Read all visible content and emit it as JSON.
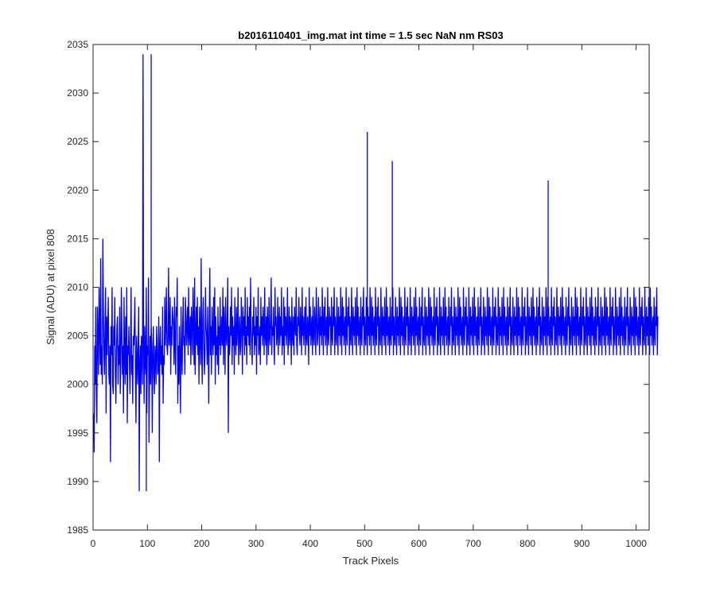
{
  "chart_data": {
    "type": "line",
    "title": "b2016110401_img.mat int time = 1.5 sec  NaN nm RS03",
    "xlabel": "Track Pixels",
    "ylabel": "Signal (ADU) at pixel 808",
    "xlim": [
      0,
      1024
    ],
    "ylim": [
      1985,
      2035
    ],
    "xticks": [
      "0",
      "100",
      "200",
      "300",
      "400",
      "500",
      "600",
      "700",
      "800",
      "900",
      "1000"
    ],
    "yticks": [
      "1985",
      "1990",
      "1995",
      "2000",
      "2005",
      "2010",
      "2015",
      "2020",
      "2025",
      "2030",
      "2035"
    ],
    "grid": false,
    "series": [
      {
        "color": "#0000ff",
        "x_start": 1,
        "x_step": 1,
        "values": [
          1997,
          1993,
          2004,
          2000,
          2008,
          1999,
          1996,
          2008,
          2005,
          2001,
          2010,
          2006,
          2002,
          2013,
          2001,
          2004,
          2000,
          2015,
          2008,
          2003,
          2001,
          2006,
          2010,
          1997,
          2007,
          2003,
          2006,
          2009,
          2001,
          2000,
          2004,
          1992,
          2006,
          2003,
          2010,
          2000,
          1999,
          2006,
          2004,
          2009,
          2001,
          1998,
          2003,
          2006,
          2007,
          2000,
          2004,
          2002,
          2008,
          1999,
          2002,
          2010,
          2006,
          2001,
          2004,
          1997,
          2009,
          2003,
          2000,
          2007,
          2001,
          2010,
          1996,
          2004,
          2003,
          2006,
          2002,
          1999,
          2004,
          2010,
          2001,
          2003,
          1998,
          2005,
          2004,
          2006,
          2009,
          2001,
          1996,
          2005,
          2003,
          2000,
          2004,
          2008,
          1989,
          2002,
          2004,
          1999,
          2005,
          2003,
          2000,
          2034,
          2004,
          1998,
          2006,
          2002,
          2001,
          2010,
          1997,
          2004,
          2003,
          2011,
          1994,
          2001,
          2005,
          2000,
          2006,
          2004,
          1995,
          2003,
          2006,
          2001,
          1999,
          2004,
          2003,
          2000,
          2006,
          2004,
          2001,
          2002,
          2007,
          1992,
          2004,
          2006,
          2002,
          2004,
          2001,
          2008,
          1998,
          2003,
          2002,
          2009,
          2004,
          2006,
          2010,
          2004,
          2003,
          2005,
          2012,
          2004,
          2005,
          2009,
          2001,
          2006,
          2004,
          2008,
          2007,
          2006,
          2002,
          2009,
          2004,
          2001,
          2008,
          2007,
          2011,
          1998,
          2004,
          2000,
          2006,
          2002,
          1997,
          2008,
          2003,
          2001,
          2006,
          2009,
          2004,
          2005,
          2001,
          2009,
          2007,
          2004,
          2006,
          2008,
          2003,
          2010,
          2005,
          2004,
          2007,
          2002,
          2008,
          2006,
          2003,
          2010,
          2007,
          2002,
          2011,
          2001,
          2005,
          2008,
          2004,
          2009,
          2003,
          2006,
          2000,
          2008,
          2005,
          2002,
          2013,
          2004,
          2000,
          2007,
          2009,
          2004,
          2001,
          2003,
          2010,
          2006,
          2005,
          2002,
          2008,
          2004,
          1998,
          2007,
          2012,
          2003,
          2006,
          2001,
          2008,
          2005,
          2003,
          2009,
          2004,
          2010,
          2000,
          2007,
          2003,
          2005,
          2002,
          2008,
          2001,
          2006,
          2004,
          2009,
          2003,
          2005,
          2007,
          2004,
          2010,
          2002,
          2008,
          2006,
          2001,
          2009,
          2005,
          2004,
          2007,
          2011,
          1995,
          2006,
          2003,
          2004,
          2008,
          2005,
          2010,
          2002,
          2007,
          2004,
          2006,
          2001,
          2009,
          2005,
          2003,
          2008,
          2004,
          2006,
          2010,
          2002,
          2005,
          2007,
          2003,
          2004,
          2009,
          2006,
          2001,
          2008,
          2005,
          2007,
          2003,
          2010,
          2004,
          2006,
          2002,
          2009,
          2005,
          2007,
          2004,
          2008,
          2003,
          2011,
          2006,
          2004,
          2002,
          2007,
          2005,
          2009,
          2003,
          2006,
          2004,
          2008,
          2001,
          2007,
          2005,
          2010,
          2003,
          2004,
          2006,
          2002,
          2009,
          2005,
          2007,
          2004,
          2008,
          2006,
          2003,
          2010,
          2005,
          2004,
          2007,
          2002,
          2008,
          2006,
          2003,
          2009,
          2005,
          2004,
          2007,
          2011,
          2003,
          2006,
          2005,
          2008,
          2004,
          2002,
          2010,
          2006,
          2007,
          2004,
          2005,
          2009,
          2003,
          2006,
          2008,
          2004,
          2007,
          2005,
          2010,
          2003,
          2006,
          2004,
          2009,
          2002,
          2008,
          2005,
          2007,
          2004,
          2006,
          2010,
          2003,
          2005,
          2008,
          2004,
          2007,
          2006,
          2002,
          2009,
          2005,
          2004,
          2007,
          2003,
          2008,
          2006,
          2005,
          2010,
          2004,
          2003,
          2007,
          2006,
          2009,
          2005,
          2004,
          2008,
          2006,
          2003,
          2010,
          2005,
          2007,
          2004,
          2006,
          2008,
          2003,
          2009,
          2005,
          2004,
          2007,
          2006,
          2002,
          2010,
          2005,
          2008,
          2004,
          2006,
          2007,
          2003,
          2009,
          2005,
          2004,
          2008,
          2006,
          2003,
          2010,
          2007,
          2004,
          2005,
          2009,
          2006,
          2003,
          2008,
          2005,
          2007,
          2004,
          2010,
          2006,
          2003,
          2008,
          2005,
          2009,
          2004,
          2006,
          2007,
          2003,
          2010,
          2005,
          2004,
          2008,
          2006,
          2007,
          2003,
          2009,
          2005,
          2004,
          2008,
          2006,
          2010,
          2003,
          2007,
          2005,
          2004,
          2009,
          2006,
          2003,
          2008,
          2005,
          2007,
          2004,
          2010,
          2006,
          2003,
          2009,
          2005,
          2008,
          2004,
          2006,
          2007,
          2003,
          2010,
          2005,
          2004,
          2008,
          2006,
          2009,
          2003,
          2007,
          2005,
          2004,
          2010,
          2006,
          2003,
          2008,
          2005,
          2007,
          2004,
          2009,
          2006,
          2003,
          2010,
          2005,
          2008,
          2004,
          2006,
          2007,
          2003,
          2009,
          2005,
          2004,
          2008,
          2006,
          2010,
          2003,
          2007,
          2005,
          2004,
          2009,
          2006,
          2003,
          2008,
          2005,
          2007,
          2004,
          2010,
          2006,
          2003,
          2009,
          2005,
          2008,
          2004,
          2006,
          2007,
          2003,
          2010,
          2005,
          2004,
          2008,
          2006,
          2009,
          2003,
          2007,
          2005,
          2004,
          2010,
          2006,
          2003,
          2008,
          2005,
          2007,
          2004,
          2009,
          2006,
          2003,
          2010,
          2005,
          2008,
          2004,
          2006,
          2007,
          2003,
          2009,
          2005,
          2004,
          2008,
          2006,
          2010,
          2003,
          2007,
          2005,
          2004,
          2009,
          2006,
          2003,
          2008,
          2005,
          2007,
          2004,
          2010,
          2006,
          2003,
          2009,
          2005,
          2008,
          2004,
          2006,
          2007,
          2003,
          2010,
          2005,
          2004,
          2008,
          2006,
          2009,
          2003,
          2007,
          2005,
          2004,
          2010,
          2006,
          2003,
          2008,
          2005,
          2007,
          2004,
          2009,
          2006,
          2003,
          2010,
          2005,
          2008,
          2004,
          2006,
          2007,
          2003,
          2009,
          2005,
          2004,
          2008,
          2006,
          2010,
          2003,
          2007,
          2005,
          2004,
          2009,
          2006,
          2003,
          2008,
          2005,
          2007,
          2004,
          2010,
          2006,
          2003,
          2009,
          2005,
          2008,
          2004,
          2006,
          2007,
          2003,
          2010,
          2005,
          2004,
          2008,
          2006,
          2009,
          2003,
          2007,
          2005,
          2004,
          2010,
          2006,
          2003,
          2008,
          2005,
          2007,
          2004,
          2009,
          2006,
          2003,
          2010,
          2005,
          2008,
          2004,
          2006,
          2007,
          2003,
          2009,
          2005,
          2004,
          2008,
          2006,
          2010,
          2003,
          2007,
          2005,
          2004,
          2009,
          2006,
          2003,
          2008,
          2005,
          2007,
          2004,
          2010,
          2006,
          2003,
          2009,
          2005,
          2008,
          2004,
          2006,
          2007,
          2003,
          2010,
          2005,
          2004,
          2008,
          2006,
          2009,
          2003,
          2007,
          2005,
          2004,
          2010,
          2006,
          2003,
          2008,
          2005,
          2007,
          2004,
          2009,
          2006,
          2003,
          2010,
          2005,
          2008,
          2004,
          2006,
          2007,
          2003,
          2009,
          2005,
          2004,
          2008,
          2006,
          2010,
          2003,
          2007,
          2005,
          2004,
          2009,
          2006,
          2003,
          2008,
          2005,
          2007,
          2004,
          2010,
          2006,
          2003,
          2009,
          2005,
          2008,
          2004,
          2006,
          2007,
          2003,
          2010,
          2005,
          2004,
          2008,
          2006,
          2009,
          2003,
          2007,
          2005,
          2004,
          2010,
          2006,
          2003,
          2008,
          2005,
          2007,
          2004,
          2009,
          2006,
          2003,
          2010,
          2005,
          2008,
          2004,
          2006,
          2007,
          2003,
          2009,
          2005,
          2004,
          2008,
          2006,
          2010,
          2003,
          2007,
          2005,
          2004,
          2009,
          2006,
          2003,
          2008,
          2005,
          2007,
          2004,
          2010,
          2006,
          2003,
          2009,
          2005,
          2008,
          2004,
          2006,
          2007,
          2003,
          2010,
          2005,
          2004,
          2008,
          2006,
          2009,
          2003,
          2007,
          2005,
          2004,
          2010,
          2006,
          2003,
          2008,
          2005,
          2007,
          2004,
          2009,
          2006,
          2003,
          2010,
          2005,
          2008,
          2004,
          2006,
          2007,
          2003,
          2009,
          2005,
          2004,
          2008,
          2006,
          2010,
          2003,
          2007,
          2005,
          2004,
          2009,
          2006,
          2003,
          2008,
          2005,
          2007,
          2004,
          2010,
          2006,
          2003,
          2009,
          2005,
          2008,
          2004,
          2006,
          2007,
          2003,
          2010,
          2005,
          2004,
          2008,
          2006,
          2009,
          2003,
          2007,
          2005,
          2004,
          2010,
          2006,
          2003,
          2008,
          2005,
          2007,
          2004,
          2009,
          2006,
          2003,
          2010,
          2005,
          2008,
          2004,
          2006,
          2007,
          2003,
          2009,
          2005,
          2004,
          2008,
          2006,
          2010,
          2003,
          2007,
          2005,
          2004,
          2009,
          2006,
          2003,
          2008,
          2005,
          2007,
          2004,
          2010,
          2006,
          2003,
          2009,
          2005,
          2008,
          2004,
          2006,
          2007,
          2003,
          2010,
          2005,
          2004,
          2008,
          2006,
          2009,
          2003,
          2007,
          2005,
          2004,
          2010,
          2006,
          2003,
          2008,
          2005,
          2007,
          2004,
          2009,
          2006,
          2003,
          2010,
          2005,
          2008,
          2004,
          2006,
          2007,
          2003,
          2009,
          2005,
          2004,
          2008,
          2006,
          2010,
          2003,
          2007,
          2005,
          2004,
          2009,
          2006,
          2003,
          2008,
          2005,
          2007,
          2004,
          2010,
          2006,
          2003,
          2009,
          2005,
          2008,
          2004,
          2006,
          2007,
          2003,
          2010,
          2005,
          2004,
          2008,
          2006,
          2009,
          2003,
          2007,
          2005,
          2004,
          2010,
          2006,
          2003,
          2008,
          2005,
          2007,
          2004,
          2009,
          2006,
          2003,
          2010,
          2005,
          2008,
          2004,
          2006,
          2007,
          2003,
          2009,
          2005,
          2004,
          2008,
          2006,
          2010,
          2003,
          2007,
          2005,
          2004,
          2009,
          2006,
          2003,
          2008,
          2005,
          2007,
          2004,
          2010,
          2006,
          2003,
          2009,
          2005,
          2008,
          2004,
          2006,
          2007,
          2003,
          2010,
          2005,
          2004,
          2008,
          2006,
          2009,
          2003,
          2007,
          2005,
          2004,
          2010,
          2006,
          2003,
          2008,
          2005,
          2007,
          2004,
          2009,
          2006,
          2003,
          2010,
          2005,
          2008,
          2004,
          2006,
          2007,
          2003,
          2009,
          2005,
          2004,
          2008,
          2006,
          2010,
          2003,
          2007
        ]
      }
    ],
    "annotations": [
      {
        "x": 107,
        "y": 2034
      },
      {
        "x": 98,
        "y": 1989
      },
      {
        "x": 505,
        "y": 2026
      },
      {
        "x": 551,
        "y": 2023
      },
      {
        "x": 838,
        "y": 2021
      }
    ]
  }
}
